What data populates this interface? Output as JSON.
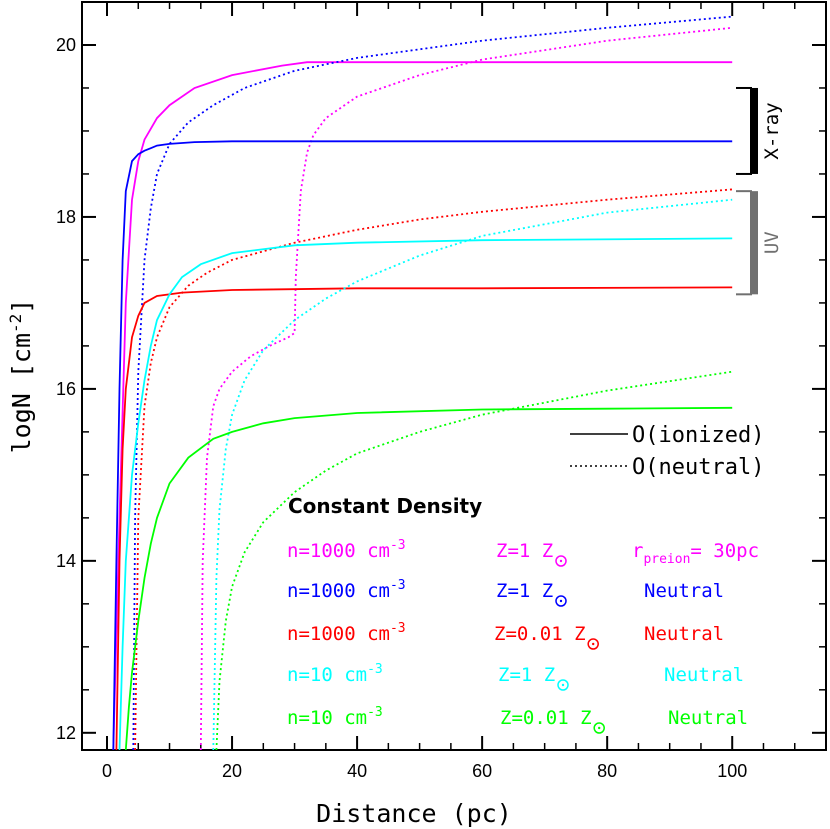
{
  "chart_data": {
    "type": "line",
    "xlabel": "Distance (pc)",
    "ylabel": "logN [cm",
    "ylabel_sup": "-2",
    "ylabel_end": "]",
    "xlim": [
      -4,
      115
    ],
    "ylim": [
      11.8,
      20.5
    ],
    "xticks": [
      0,
      20,
      40,
      60,
      80,
      100
    ],
    "yticks": [
      12,
      14,
      16,
      18,
      20
    ],
    "line_styles": [
      {
        "label": "O(ionized)",
        "style": "solid"
      },
      {
        "label": "O(neutral)",
        "style": "dotted"
      }
    ],
    "bands": [
      {
        "label": "X-ray",
        "from": 18.5,
        "to": 19.5,
        "color": "#000000"
      },
      {
        "label": "UV",
        "from": 17.1,
        "to": 18.3,
        "color": "#707070"
      }
    ],
    "legend_title": "Constant Density",
    "series": [
      {
        "name": "n=1000 cm-3 Z=1 Zsun r_preion=30pc",
        "color": "#ff00ff",
        "density": "n=1000 cm",
        "density_sup": "-3",
        "metal": "Z=1 Z",
        "ion_prefix": "r",
        "ion_sub": "preion",
        "ion_suffix": "= 30pc",
        "ionized": {
          "x": [
            1,
            2,
            3,
            4,
            5,
            6,
            8,
            10,
            14,
            20,
            28,
            32,
            40,
            60,
            80,
            100
          ],
          "y": [
            11.8,
            14.5,
            17.0,
            18.2,
            18.65,
            18.9,
            19.15,
            19.3,
            19.5,
            19.65,
            19.76,
            19.8,
            19.8,
            19.8,
            19.8,
            19.8
          ]
        },
        "neutral": {
          "x": [
            15,
            15.3,
            16,
            17,
            18,
            20,
            23,
            26,
            29,
            30,
            30.2,
            31,
            32,
            33,
            35,
            40,
            50,
            60,
            80,
            100
          ],
          "y": [
            11.8,
            14.0,
            15.2,
            15.8,
            16.0,
            16.2,
            16.38,
            16.5,
            16.6,
            16.65,
            17.3,
            18.3,
            18.75,
            18.95,
            19.15,
            19.4,
            19.65,
            19.83,
            20.05,
            20.2
          ]
        }
      },
      {
        "name": "n=1000 cm-3 Z=1 Zsun Neutral",
        "color": "#0000ff",
        "density": "n=1000 cm",
        "density_sup": "-3",
        "metal": "Z=1 Z",
        "ion": "Neutral",
        "ionized": {
          "x": [
            1,
            1.5,
            2,
            2.5,
            3,
            4,
            5,
            6,
            7,
            8,
            10,
            14,
            20,
            40,
            100
          ],
          "y": [
            11.8,
            14.0,
            16.0,
            17.5,
            18.3,
            18.65,
            18.73,
            18.77,
            18.8,
            18.83,
            18.85,
            18.87,
            18.88,
            18.88,
            18.88
          ]
        },
        "neutral": {
          "x": [
            4.2,
            4.5,
            5,
            6,
            7,
            8,
            10,
            13,
            17,
            22,
            30,
            40,
            60,
            80,
            100
          ],
          "y": [
            11.8,
            14.5,
            16.2,
            17.5,
            18.1,
            18.5,
            18.85,
            19.1,
            19.3,
            19.5,
            19.7,
            19.85,
            20.05,
            20.2,
            20.33
          ]
        }
      },
      {
        "name": "n=1000 cm-3 Z=0.01 Zsun Neutral",
        "color": "#ff0000",
        "density": "n=1000 cm",
        "density_sup": "-3",
        "metal": "Z=0.01 Z",
        "ion": "Neutral",
        "ionized": {
          "x": [
            1.5,
            2,
            2.5,
            3,
            4,
            5,
            6,
            8,
            12,
            20,
            40,
            60,
            100
          ],
          "y": [
            11.8,
            14.0,
            15.3,
            16.0,
            16.6,
            16.85,
            17.0,
            17.08,
            17.12,
            17.15,
            17.17,
            17.17,
            17.18
          ]
        },
        "neutral": {
          "x": [
            4.5,
            5,
            6,
            7,
            8,
            10,
            13,
            16,
            20,
            25,
            30,
            40,
            50,
            60,
            80,
            100
          ],
          "y": [
            11.8,
            14.5,
            15.8,
            16.3,
            16.6,
            16.95,
            17.2,
            17.35,
            17.5,
            17.6,
            17.7,
            17.85,
            17.97,
            18.06,
            18.2,
            18.32
          ]
        }
      },
      {
        "name": "n=10 cm-3 Z=1 Zsun Neutral",
        "color": "#00ffff",
        "density": "n=10 cm",
        "density_sup": "-3",
        "metal": "Z=1 Z",
        "ion": "Neutral",
        "ionized": {
          "x": [
            2,
            2.5,
            3,
            4,
            5,
            6,
            7,
            8,
            10,
            12,
            15,
            20,
            30,
            40,
            60,
            100
          ],
          "y": [
            11.8,
            13.0,
            14.0,
            15.0,
            15.6,
            16.1,
            16.5,
            16.8,
            17.1,
            17.3,
            17.45,
            17.58,
            17.67,
            17.7,
            17.73,
            17.75
          ]
        },
        "neutral": {
          "x": [
            17,
            17.5,
            18,
            19,
            20,
            22,
            25,
            30,
            35,
            40,
            50,
            60,
            80,
            100
          ],
          "y": [
            11.8,
            13.8,
            14.6,
            15.3,
            15.7,
            16.1,
            16.45,
            16.8,
            17.05,
            17.25,
            17.55,
            17.78,
            18.05,
            18.2
          ]
        }
      },
      {
        "name": "n=10 cm-3 Z=0.01 Zsun Neutral",
        "color": "#00ff00",
        "density": "n=10 cm",
        "density_sup": "-3",
        "metal": "Z=0.01 Z",
        "ion": "Neutral",
        "ionized": {
          "x": [
            3,
            3.5,
            4,
            5,
            6,
            7,
            8,
            10,
            13,
            17,
            20,
            25,
            30,
            40,
            60,
            80,
            100
          ],
          "y": [
            11.8,
            12.3,
            12.7,
            13.3,
            13.8,
            14.2,
            14.5,
            14.9,
            15.2,
            15.42,
            15.5,
            15.6,
            15.66,
            15.72,
            15.76,
            15.77,
            15.78
          ]
        },
        "neutral": {
          "x": [
            17.5,
            18,
            19,
            20,
            22,
            25,
            30,
            35,
            40,
            50,
            60,
            80,
            100
          ],
          "y": [
            11.8,
            12.6,
            13.3,
            13.7,
            14.1,
            14.45,
            14.8,
            15.05,
            15.25,
            15.5,
            15.7,
            15.98,
            16.2
          ]
        }
      }
    ]
  }
}
